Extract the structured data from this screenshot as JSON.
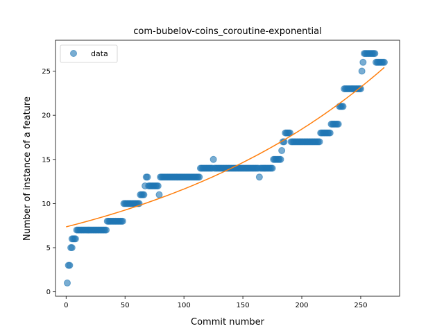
{
  "chart_data": {
    "type": "scatter",
    "title": "com-bubelov-coins_coroutine-exponential",
    "xlabel": "Commit number",
    "ylabel": "Number of instance of a feature",
    "xlim": [
      -9,
      283
    ],
    "ylim": [
      -0.5,
      28.5
    ],
    "xticks": [
      0,
      50,
      100,
      150,
      200,
      250
    ],
    "yticks": [
      0,
      5,
      10,
      15,
      20,
      25
    ],
    "grid": false,
    "legend": {
      "position": "top-left",
      "entries": [
        "data"
      ]
    },
    "series": [
      {
        "name": "data",
        "kind": "points",
        "color": "#1f77b4",
        "runs": [
          [
            1,
            1,
            1
          ],
          [
            2,
            3,
            3
          ],
          [
            4,
            5,
            5
          ],
          [
            5,
            8,
            6
          ],
          [
            9,
            34,
            7
          ],
          [
            35,
            48,
            8
          ],
          [
            49,
            62,
            10
          ],
          [
            63,
            66,
            11
          ],
          [
            67,
            67,
            12
          ],
          [
            68,
            69,
            13
          ],
          [
            70,
            78,
            12
          ],
          [
            79,
            79,
            11
          ],
          [
            80,
            113,
            13
          ],
          [
            114,
            124,
            14
          ],
          [
            125,
            125,
            15
          ],
          [
            126,
            163,
            14
          ],
          [
            164,
            164,
            13
          ],
          [
            165,
            175,
            14
          ],
          [
            176,
            182,
            15
          ],
          [
            183,
            183,
            16
          ],
          [
            184,
            185,
            17
          ],
          [
            186,
            190,
            18
          ],
          [
            191,
            215,
            17
          ],
          [
            216,
            224,
            18
          ],
          [
            225,
            231,
            19
          ],
          [
            232,
            235,
            21
          ],
          [
            236,
            250,
            23
          ],
          [
            251,
            251,
            25
          ],
          [
            252,
            252,
            26
          ],
          [
            253,
            262,
            27
          ],
          [
            263,
            270,
            26
          ]
        ]
      },
      {
        "name": "",
        "kind": "line",
        "color": "#ff7f0e",
        "model": "exponential",
        "a": 7.36,
        "b": 0.00459,
        "x_range": [
          0,
          270
        ]
      }
    ]
  }
}
